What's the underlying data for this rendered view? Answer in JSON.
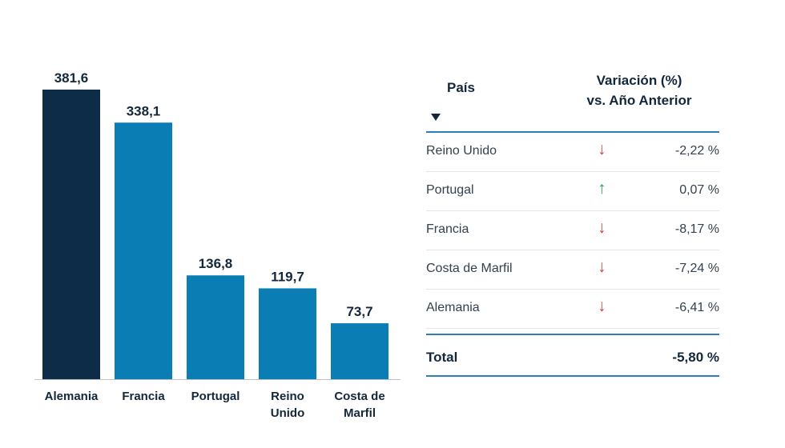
{
  "chart_data": {
    "type": "bar",
    "categories": [
      "Alemania",
      "Francia",
      "Portugal",
      "Reino Unido",
      "Costa de Marfil"
    ],
    "category_lines": [
      [
        "Alemania"
      ],
      [
        "Francia"
      ],
      [
        "Portugal"
      ],
      [
        "Reino",
        "Unido"
      ],
      [
        "Costa de",
        "Marfil"
      ]
    ],
    "values": [
      381.6,
      338.1,
      136.8,
      119.7,
      73.7
    ],
    "value_labels": [
      "381,6",
      "338,1",
      "136,8",
      "119,7",
      "73,7"
    ],
    "colors": [
      "#0d2c47",
      "#0a7db4",
      "#0a7db4",
      "#0a7db4",
      "#0a7db4"
    ],
    "ylim": [
      0,
      381.6
    ],
    "title": "",
    "xlabel": "",
    "ylabel": "",
    "grid": false
  },
  "table": {
    "header_country": "País",
    "header_variation_line1": "Variación (%)",
    "header_variation_line2": "vs. Año Anterior",
    "rows": [
      {
        "country": "Reino Unido",
        "direction": "down",
        "arrow": "↓",
        "value": "-2,22 %"
      },
      {
        "country": "Portugal",
        "direction": "up",
        "arrow": "↑",
        "value": "0,07 %"
      },
      {
        "country": "Francia",
        "direction": "down",
        "arrow": "↓",
        "value": "-8,17 %"
      },
      {
        "country": "Costa de Marfil",
        "direction": "down",
        "arrow": "↓",
        "value": "-7,24 %"
      },
      {
        "country": "Alemania",
        "direction": "down",
        "arrow": "↓",
        "value": "-6,41 %"
      }
    ],
    "total_label": "Total",
    "total_value": "-5,80 %"
  },
  "colors": {
    "accent": "#2e7fb3",
    "down": "#d0463c",
    "up": "#2e9a57"
  }
}
